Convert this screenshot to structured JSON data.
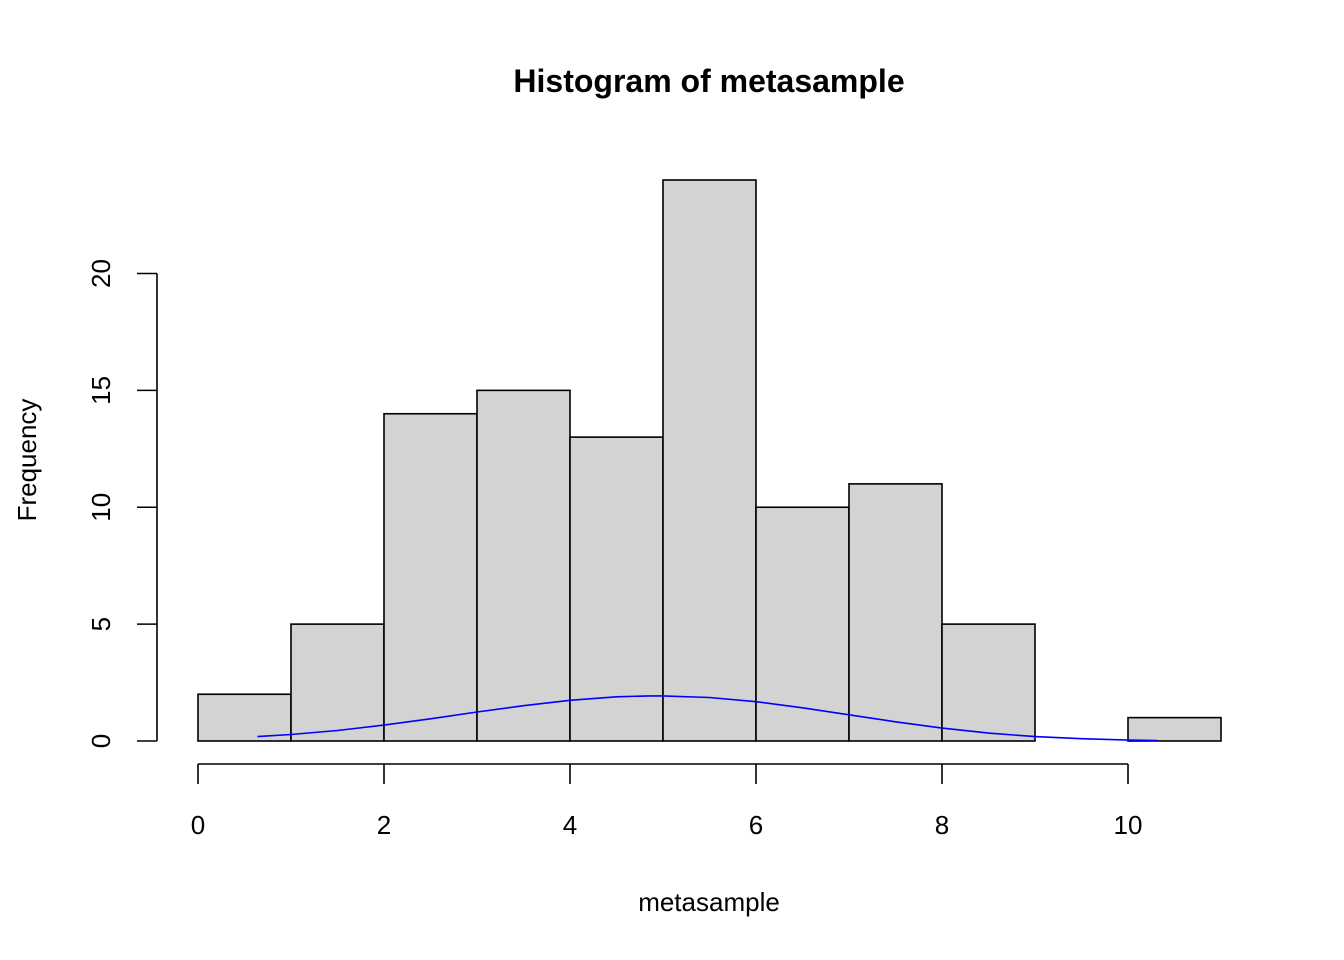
{
  "chart_data": {
    "type": "bar",
    "title": "Histogram of metasample",
    "xlabel": "metasample",
    "ylabel": "Frequency",
    "bins": [
      {
        "from": 0,
        "to": 1,
        "count": 2
      },
      {
        "from": 1,
        "to": 2,
        "count": 5
      },
      {
        "from": 2,
        "to": 3,
        "count": 14
      },
      {
        "from": 3,
        "to": 4,
        "count": 15
      },
      {
        "from": 4,
        "to": 5,
        "count": 13
      },
      {
        "from": 5,
        "to": 6,
        "count": 24
      },
      {
        "from": 6,
        "to": 7,
        "count": 10
      },
      {
        "from": 7,
        "to": 8,
        "count": 11
      },
      {
        "from": 8,
        "to": 9,
        "count": 5
      },
      {
        "from": 9,
        "to": 10,
        "count": 0
      },
      {
        "from": 10,
        "to": 11,
        "count": 1
      }
    ],
    "x_ticks": [
      0,
      2,
      4,
      6,
      8,
      10
    ],
    "y_ticks": [
      0,
      5,
      10,
      15,
      20
    ],
    "xlim": [
      0,
      11
    ],
    "ylim": [
      0,
      24
    ],
    "grid": false,
    "overlay_curve": {
      "type": "line",
      "color": "#0000ff",
      "points": [
        [
          0.64,
          0.19
        ],
        [
          1.0,
          0.28
        ],
        [
          1.5,
          0.45
        ],
        [
          2.0,
          0.68
        ],
        [
          2.5,
          0.95
        ],
        [
          3.0,
          1.24
        ],
        [
          3.5,
          1.51
        ],
        [
          4.0,
          1.74
        ],
        [
          4.5,
          1.89
        ],
        [
          4.85,
          1.93
        ],
        [
          5.0,
          1.93
        ],
        [
          5.5,
          1.86
        ],
        [
          6.0,
          1.68
        ],
        [
          6.5,
          1.42
        ],
        [
          7.0,
          1.12
        ],
        [
          7.5,
          0.82
        ],
        [
          8.0,
          0.55
        ],
        [
          8.5,
          0.34
        ],
        [
          9.0,
          0.19
        ],
        [
          9.5,
          0.1
        ],
        [
          10.0,
          0.04
        ],
        [
          10.32,
          0.02
        ]
      ]
    },
    "colors": {
      "bar_fill": "#d3d3d3",
      "bar_stroke": "#000000",
      "curve": "#0000ff"
    }
  }
}
